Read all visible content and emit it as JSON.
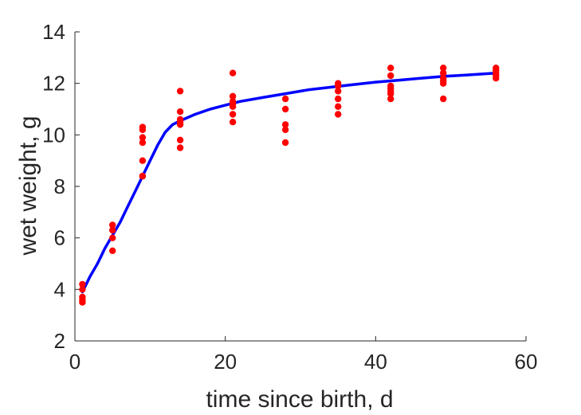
{
  "chart_data": {
    "type": "scatter",
    "title": "",
    "xlabel": "time since birth, d",
    "ylabel": "wet weight, g",
    "xlim": [
      0,
      60
    ],
    "ylim": [
      2,
      14
    ],
    "xticks": [
      0,
      20,
      40,
      60
    ],
    "yticks": [
      2,
      4,
      6,
      8,
      10,
      12,
      14
    ],
    "grid": false,
    "legend": "none",
    "series": [
      {
        "kind": "points",
        "color": "#ff0000",
        "x": [
          1,
          1,
          1,
          1,
          1,
          5,
          5,
          5,
          5,
          9,
          9,
          9,
          9,
          9,
          9,
          9,
          14,
          14,
          14,
          14,
          14,
          14,
          14,
          21,
          21,
          21,
          21,
          21,
          21,
          21,
          28,
          28,
          28,
          28,
          28,
          35,
          35,
          35,
          35,
          35,
          35,
          42,
          42,
          42,
          42,
          42,
          42,
          42,
          49,
          49,
          49,
          49,
          49,
          49,
          56,
          56,
          56,
          56,
          56
        ],
        "y": [
          4.2,
          4.0,
          3.7,
          3.6,
          3.5,
          6.5,
          6.3,
          6.0,
          5.5,
          10.3,
          10.2,
          9.9,
          9.7,
          9.0,
          8.4,
          8.4,
          11.7,
          10.9,
          10.6,
          10.4,
          9.8,
          9.5,
          10.5,
          12.4,
          11.5,
          11.3,
          11.1,
          10.8,
          10.5,
          11.2,
          11.4,
          11.0,
          10.4,
          10.2,
          9.7,
          12.0,
          11.7,
          11.4,
          11.1,
          10.8,
          11.9,
          12.6,
          12.3,
          11.9,
          11.7,
          11.6,
          11.4,
          11.8,
          12.6,
          12.4,
          12.2,
          12.1,
          12.0,
          11.4,
          12.6,
          12.5,
          12.4,
          12.3,
          12.2
        ]
      },
      {
        "kind": "curve",
        "color": "#0000ff",
        "x": [
          1,
          2,
          3,
          4,
          5,
          6,
          7,
          8,
          9,
          10,
          11,
          12,
          13,
          14,
          16,
          18,
          20,
          22,
          25,
          28,
          31,
          34,
          37,
          40,
          43,
          46,
          49,
          52,
          56
        ],
        "y": [
          3.9,
          4.5,
          5.0,
          5.6,
          6.1,
          6.6,
          7.2,
          7.8,
          8.4,
          9.0,
          9.6,
          10.1,
          10.4,
          10.55,
          10.8,
          11.0,
          11.15,
          11.3,
          11.45,
          11.6,
          11.75,
          11.85,
          11.95,
          12.05,
          12.12,
          12.2,
          12.27,
          12.32,
          12.4
        ]
      }
    ]
  }
}
